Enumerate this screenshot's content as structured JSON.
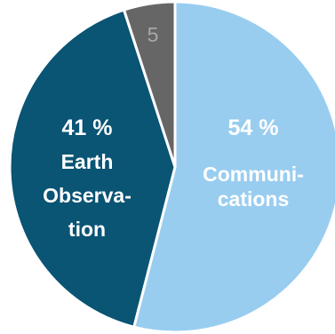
{
  "chart_data": {
    "type": "pie",
    "title": "",
    "legend": "none",
    "slices": [
      {
        "name": "Communications",
        "value": 54,
        "value_label": "54 %",
        "name_lines": [
          "Communi-",
          "cations"
        ],
        "color": "#99cdf0"
      },
      {
        "name": "Earth Observation",
        "value": 41,
        "value_label": "41 %",
        "name_lines": [
          "Earth",
          "Observa-",
          "tion"
        ],
        "color": "#0a5474"
      },
      {
        "value": 5,
        "value_label": "5",
        "name_lines": [],
        "color": "#666666"
      }
    ]
  }
}
